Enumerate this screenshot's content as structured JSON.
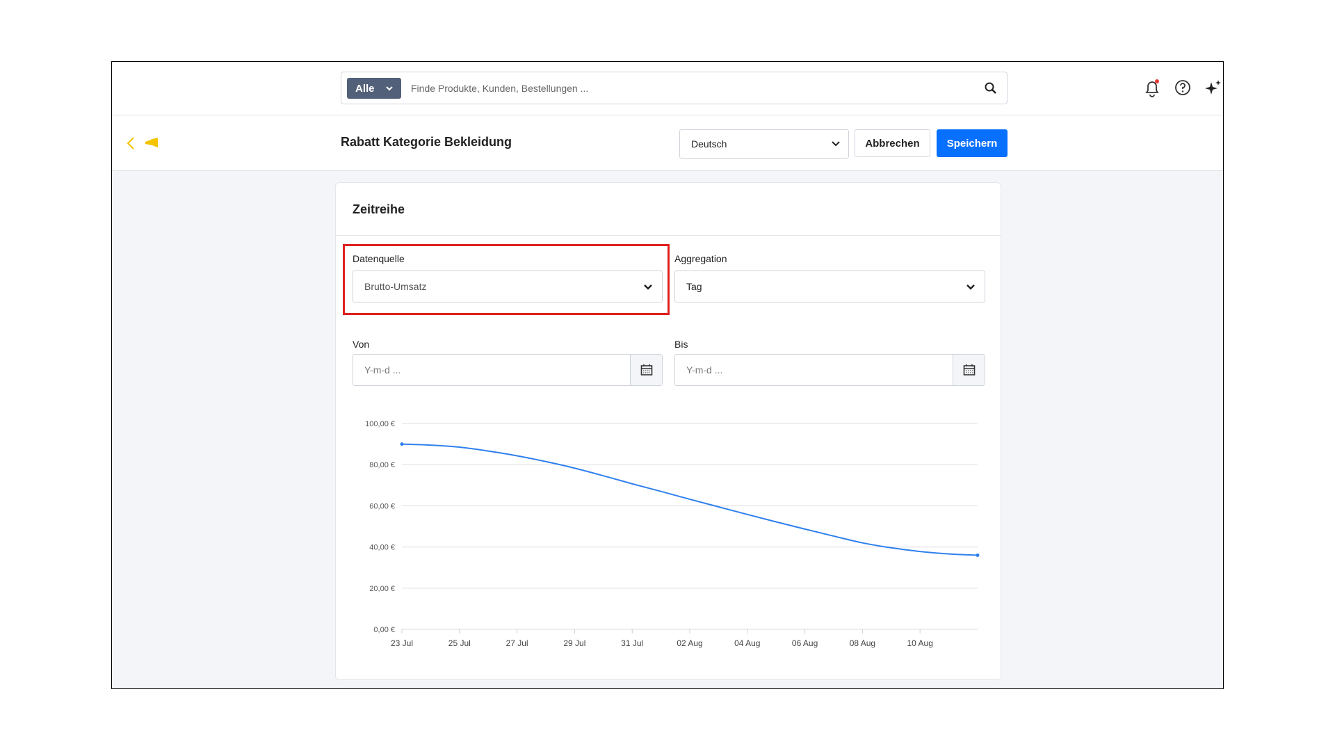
{
  "header": {
    "search_scope": "Alle",
    "search_placeholder": "Finde Produkte, Kunden, Bestellungen ..."
  },
  "toolbar": {
    "title": "Rabatt Kategorie Bekleidung",
    "language": "Deutsch",
    "cancel": "Abbrechen",
    "save": "Speichern"
  },
  "card": {
    "title": "Zeitreihe",
    "fields": [
      {
        "label": "Datenquelle",
        "value": "Brutto-Umsatz"
      },
      {
        "label": "Aggregation",
        "value": "Tag"
      },
      {
        "label": "Von",
        "placeholder": "Y-m-d ..."
      },
      {
        "label": "Bis",
        "placeholder": "Y-m-d ..."
      }
    ]
  },
  "chart_data": {
    "type": "line",
    "categories": [
      "23 Jul",
      null,
      "25 Jul",
      null,
      "27 Jul",
      null,
      "29 Jul",
      null,
      "31 Jul",
      null,
      "02 Aug",
      null,
      "04 Aug",
      null,
      "06 Aug",
      null,
      "08 Aug",
      null,
      "10 Aug",
      null,
      null
    ],
    "values": [
      90,
      89.5,
      88.5,
      86.6,
      84.3,
      81.5,
      78.3,
      74.6,
      70.7,
      67,
      63.2,
      59.5,
      55.8,
      52.2,
      48.7,
      45.3,
      42,
      39.6,
      37.8,
      36.6,
      36
    ],
    "color": "#2f80ed",
    "ylim": [
      0,
      100
    ],
    "yticks": [
      {
        "value": 0,
        "label": "0,00 €"
      },
      {
        "value": 20,
        "label": "20,00 €"
      },
      {
        "value": 40,
        "label": "40,00 €"
      },
      {
        "value": 60,
        "label": "60,00 €"
      },
      {
        "value": 80,
        "label": "80,00 €"
      },
      {
        "value": 100,
        "label": "100,00 €"
      }
    ],
    "grid": true
  }
}
